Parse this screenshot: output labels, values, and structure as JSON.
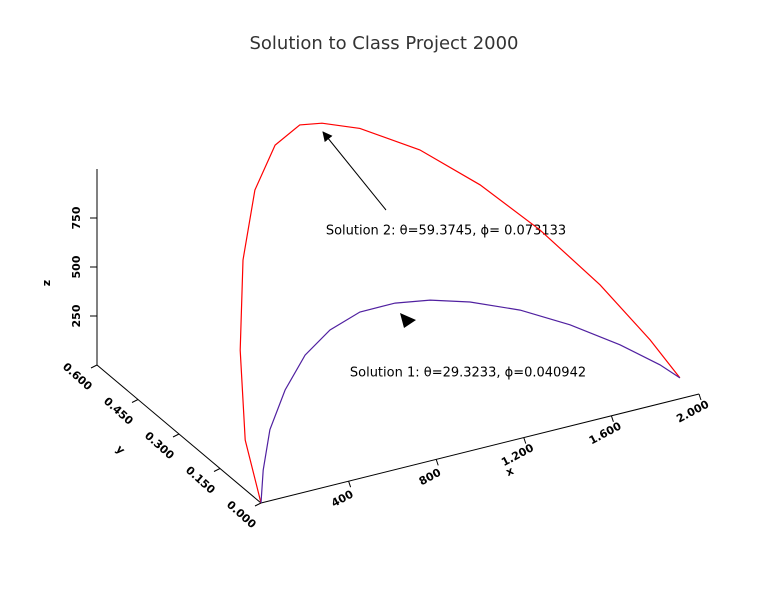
{
  "chart_data": {
    "type": "line3d",
    "title": "Solution to Class Project 2000",
    "xlabel": "x",
    "ylabel": "y",
    "zlabel": "z",
    "xlim": [
      0,
      2000
    ],
    "ylim": [
      0,
      0.6
    ],
    "zlim": [
      0,
      1000
    ],
    "xticks": [
      400,
      800,
      {
        "value": 1200,
        "label": "1.200"
      },
      {
        "value": 1600,
        "label": "1.600"
      },
      {
        "value": 2000,
        "label": "2.000"
      }
    ],
    "yticks": [
      {
        "value": 0,
        "label": "0.000"
      },
      {
        "value": 0.15,
        "label": "0.150"
      },
      {
        "value": 0.3,
        "label": "0.300"
      },
      {
        "value": 0.45,
        "label": "0.450"
      },
      {
        "value": 0.6,
        "label": "0.600"
      }
    ],
    "zticks": [
      250,
      500,
      750
    ],
    "annotations": [
      "Solution 2:  θ=59.3745,  ϕ= 0.073133",
      "Solution 1:  θ=29.3233, ϕ=0.040942"
    ],
    "series": [
      {
        "name": "Solution 2",
        "color": "#ff0000",
        "x": [
          0,
          -76,
          -100,
          -86,
          -29,
          67,
          186,
          291,
          473,
          759,
          1046,
          1332,
          1619,
          1858,
          2000
        ],
        "y": [
          0,
          -0.003,
          -0.004,
          -0.003,
          -0.001,
          0.002,
          0.007,
          0.01,
          0.017,
          0.027,
          0.037,
          0.047,
          0.057,
          0.065,
          0.07
        ],
        "z": [
          0,
          346,
          812,
          1267,
          1606,
          1805,
          1869,
          1845,
          1760,
          1559,
          1289,
          968,
          596,
          239,
          0
        ]
      },
      {
        "name": "Solution 1",
        "color": "#5020a0",
        "x": [
          0,
          10,
          43,
          115,
          210,
          330,
          473,
          640,
          807,
          998,
          1237,
          1476,
          1714,
          1905,
          2000
        ],
        "y": [
          0,
          0,
          0.002,
          0.004,
          0.007,
          0.012,
          0.017,
          0.022,
          0.028,
          0.035,
          0.043,
          0.052,
          0.06,
          0.067,
          0.07
        ],
        "z": [
          0,
          165,
          360,
          540,
          688,
          777,
          823,
          816,
          778,
          707,
          590,
          438,
          260,
          97,
          0
        ]
      }
    ]
  }
}
